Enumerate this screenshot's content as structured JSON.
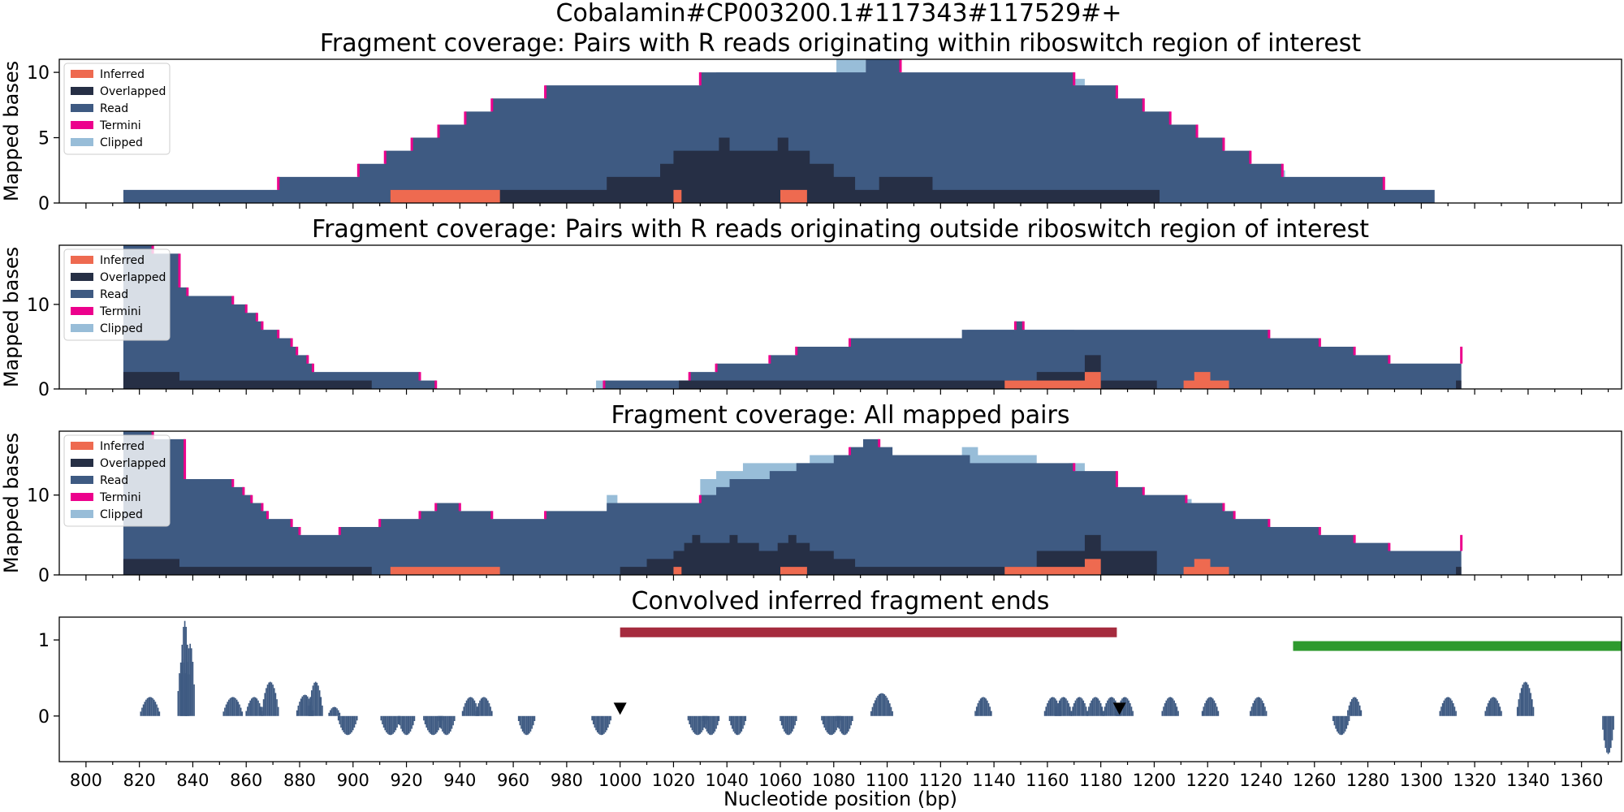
{
  "figure": {
    "suptitle": "Cobalamin#CP003200.1#117343#117529#+",
    "xlabel": "Nucleotide position (bp)"
  },
  "colors": {
    "inferred": "#ee6a50",
    "overlapped": "#262f45",
    "read": "#3e5a82",
    "termini": "#ec008c",
    "clipped": "#98bdd8",
    "riboswitch_bar": "#a52b3e",
    "gene_bar": "#2e9a2e",
    "marker": "#000000"
  },
  "chart_data": [
    {
      "type": "area",
      "title": "Fragment coverage: Pairs with R reads originating within riboswitch region of interest",
      "ylabel": "Mapped bases",
      "xlim": [
        790,
        1375
      ],
      "ylim": [
        0,
        11
      ],
      "yticks": [
        0,
        5,
        10
      ],
      "legend": {
        "placement": "top-left",
        "entries": [
          "Inferred",
          "Overlapped",
          "Read",
          "Termini",
          "Clipped"
        ]
      },
      "read": [
        [
          814,
          1
        ],
        [
          872,
          2
        ],
        [
          902,
          3
        ],
        [
          912,
          4
        ],
        [
          922,
          5
        ],
        [
          932,
          6
        ],
        [
          942,
          7
        ],
        [
          952,
          8
        ],
        [
          972,
          9
        ],
        [
          1030,
          10
        ],
        [
          1092,
          11
        ],
        [
          1105,
          10
        ],
        [
          1170,
          9
        ],
        [
          1186,
          8
        ],
        [
          1196,
          7
        ],
        [
          1206,
          6
        ],
        [
          1216,
          5
        ],
        [
          1226,
          4
        ],
        [
          1236,
          3
        ],
        [
          1248,
          2
        ],
        [
          1286,
          1
        ],
        [
          1305,
          0
        ]
      ],
      "clipped": [
        [
          1036,
          10
        ],
        [
          1081,
          11
        ],
        [
          1092,
          null
        ],
        [
          1170,
          9.5
        ],
        [
          1174,
          null
        ],
        [
          1212,
          5.5
        ],
        [
          1214,
          null
        ],
        [
          1233,
          3.5
        ],
        [
          1236,
          null
        ],
        [
          1247,
          2.5
        ],
        [
          1249,
          null
        ]
      ],
      "overlapped": [
        [
          914,
          1
        ],
        [
          955,
          1
        ],
        [
          995,
          2
        ],
        [
          1015,
          3
        ],
        [
          1020,
          4
        ],
        [
          1037,
          5
        ],
        [
          1041,
          4
        ],
        [
          1059,
          5
        ],
        [
          1063,
          4
        ],
        [
          1071,
          3
        ],
        [
          1080,
          2
        ],
        [
          1088,
          1
        ],
        [
          1097,
          2
        ],
        [
          1117,
          1
        ],
        [
          1202,
          0
        ]
      ],
      "inferred": [
        [
          914,
          1
        ],
        [
          955,
          0
        ],
        [
          1020,
          1
        ],
        [
          1023,
          0
        ],
        [
          1060,
          1
        ],
        [
          1070,
          0
        ]
      ],
      "termini": [
        872,
        902,
        912,
        922,
        932,
        942,
        952,
        972,
        1030,
        1105,
        1170,
        1186,
        1196,
        1206,
        1216,
        1226,
        1236,
        1248,
        1286
      ]
    },
    {
      "type": "area",
      "title": "Fragment coverage: Pairs with R reads originating outside riboswitch region of interest",
      "ylabel": "Mapped bases",
      "xlim": [
        790,
        1375
      ],
      "ylim": [
        0,
        17
      ],
      "yticks": [
        0,
        10
      ],
      "legend": {
        "placement": "top-left",
        "entries": [
          "Inferred",
          "Overlapped",
          "Read",
          "Termini",
          "Clipped"
        ]
      },
      "read": [
        [
          814,
          17
        ],
        [
          825,
          16
        ],
        [
          835,
          12
        ],
        [
          838,
          11
        ],
        [
          855,
          10
        ],
        [
          860,
          9
        ],
        [
          864,
          8
        ],
        [
          866,
          7
        ],
        [
          872,
          6
        ],
        [
          877,
          5
        ],
        [
          879,
          4
        ],
        [
          883,
          3
        ],
        [
          885,
          2
        ],
        [
          925,
          1
        ],
        [
          931,
          0
        ],
        [
          994,
          1
        ],
        [
          1026,
          2
        ],
        [
          1036,
          3
        ],
        [
          1056,
          4
        ],
        [
          1066,
          5
        ],
        [
          1086,
          6
        ],
        [
          1128,
          7
        ],
        [
          1148,
          8
        ],
        [
          1151,
          7
        ],
        [
          1192,
          7
        ],
        [
          1243,
          6
        ],
        [
          1262,
          5
        ],
        [
          1275,
          4
        ],
        [
          1288,
          3
        ],
        [
          1315,
          5
        ]
      ],
      "clipped": [
        [
          991,
          1
        ],
        [
          996,
          null
        ],
        [
          1130,
          7
        ],
        [
          1170,
          null
        ]
      ],
      "overlapped": [
        [
          814,
          2
        ],
        [
          835,
          1
        ],
        [
          907,
          0
        ],
        [
          1000,
          0
        ],
        [
          1022,
          1
        ],
        [
          1062,
          1
        ],
        [
          1156,
          2
        ],
        [
          1174,
          4
        ],
        [
          1180,
          1
        ],
        [
          1201,
          0
        ],
        [
          1313,
          1
        ],
        [
          1315,
          0
        ]
      ],
      "inferred": [
        [
          1144,
          1
        ],
        [
          1174,
          2
        ],
        [
          1180,
          0
        ],
        [
          1211,
          1
        ],
        [
          1215,
          2
        ],
        [
          1221,
          1
        ],
        [
          1228,
          0
        ]
      ],
      "termini": [
        825,
        835,
        838,
        855,
        860,
        864,
        866,
        872,
        877,
        879,
        883,
        885,
        925,
        931,
        994,
        1026,
        1036,
        1056,
        1066,
        1086,
        1148,
        1151,
        1243,
        1262,
        1275,
        1288,
        1315
      ]
    },
    {
      "type": "area",
      "title": "Fragment coverage: All mapped pairs",
      "ylabel": "Mapped bases",
      "xlim": [
        790,
        1375
      ],
      "ylim": [
        0,
        18
      ],
      "yticks": [
        0,
        10
      ],
      "legend": {
        "placement": "top-left",
        "entries": [
          "Inferred",
          "Overlapped",
          "Read",
          "Termini",
          "Clipped"
        ]
      },
      "read": [
        [
          814,
          18
        ],
        [
          825,
          17
        ],
        [
          837,
          12
        ],
        [
          855,
          11
        ],
        [
          859,
          10
        ],
        [
          862,
          9
        ],
        [
          866,
          8
        ],
        [
          868,
          7
        ],
        [
          877,
          6
        ],
        [
          880,
          5
        ],
        [
          895,
          6
        ],
        [
          910,
          7
        ],
        [
          925,
          8
        ],
        [
          931,
          9
        ],
        [
          940,
          8
        ],
        [
          952,
          7
        ],
        [
          972,
          8
        ],
        [
          995,
          9
        ],
        [
          1030,
          10
        ],
        [
          1036,
          11
        ],
        [
          1041,
          12
        ],
        [
          1056,
          13
        ],
        [
          1066,
          14
        ],
        [
          1080,
          15
        ],
        [
          1086,
          16
        ],
        [
          1091,
          17
        ],
        [
          1097,
          16
        ],
        [
          1102,
          15
        ],
        [
          1131,
          14
        ],
        [
          1170,
          13
        ],
        [
          1186,
          11
        ],
        [
          1196,
          10
        ],
        [
          1212,
          9
        ],
        [
          1226,
          8
        ],
        [
          1230,
          7
        ],
        [
          1243,
          6
        ],
        [
          1262,
          5
        ],
        [
          1275,
          4
        ],
        [
          1288,
          3
        ],
        [
          1315,
          5
        ]
      ],
      "clipped": [
        [
          995,
          10
        ],
        [
          999,
          null
        ],
        [
          1030,
          12
        ],
        [
          1036,
          13
        ],
        [
          1046,
          14
        ],
        [
          1071,
          15
        ],
        [
          1082,
          null
        ],
        [
          1128,
          16
        ],
        [
          1134,
          15
        ],
        [
          1156,
          null
        ],
        [
          1168,
          14
        ],
        [
          1174,
          null
        ],
        [
          1212,
          9.5
        ],
        [
          1214,
          null
        ]
      ],
      "overlapped": [
        [
          814,
          2
        ],
        [
          835,
          1
        ],
        [
          907,
          0
        ],
        [
          1000,
          1
        ],
        [
          1010,
          2
        ],
        [
          1020,
          3
        ],
        [
          1024,
          4
        ],
        [
          1027,
          5
        ],
        [
          1030,
          4
        ],
        [
          1041,
          5
        ],
        [
          1044,
          4
        ],
        [
          1052,
          3
        ],
        [
          1059,
          4
        ],
        [
          1063,
          5
        ],
        [
          1066,
          4
        ],
        [
          1071,
          3
        ],
        [
          1080,
          2
        ],
        [
          1088,
          1
        ],
        [
          1140,
          1
        ],
        [
          1156,
          3
        ],
        [
          1174,
          5
        ],
        [
          1180,
          3
        ],
        [
          1201,
          0
        ],
        [
          1313,
          1
        ],
        [
          1315,
          0
        ]
      ],
      "inferred": [
        [
          914,
          1
        ],
        [
          955,
          0
        ],
        [
          1020,
          1
        ],
        [
          1023,
          0
        ],
        [
          1060,
          1
        ],
        [
          1070,
          0
        ],
        [
          1144,
          1
        ],
        [
          1174,
          2
        ],
        [
          1180,
          0
        ],
        [
          1211,
          1
        ],
        [
          1215,
          2
        ],
        [
          1221,
          1
        ],
        [
          1228,
          0
        ]
      ],
      "termini": [
        825,
        837,
        855,
        859,
        862,
        866,
        868,
        877,
        880,
        895,
        910,
        925,
        931,
        940,
        952,
        972,
        1030,
        1086,
        1097,
        1170,
        1186,
        1196,
        1212,
        1226,
        1230,
        1243,
        1262,
        1275,
        1288,
        1315
      ]
    },
    {
      "type": "bar",
      "title": "Convolved inferred fragment ends",
      "ylabel": "",
      "xlabel": "Nucleotide position (bp)",
      "xlim": [
        790,
        1375
      ],
      "ylim": [
        -0.6,
        1.3
      ],
      "yticks": [
        0,
        1
      ],
      "xticks": [
        800,
        820,
        840,
        860,
        880,
        900,
        920,
        940,
        960,
        980,
        1000,
        1020,
        1040,
        1060,
        1080,
        1100,
        1120,
        1140,
        1160,
        1180,
        1200,
        1220,
        1240,
        1260,
        1280,
        1300,
        1320,
        1340,
        1360
      ],
      "peaks": [
        {
          "x": 824,
          "h": 0.25,
          "w": 7
        },
        {
          "x": 836,
          "h": 0.75,
          "w": 3
        },
        {
          "x": 837,
          "h": 1.25,
          "w": 3
        },
        {
          "x": 839,
          "h": 0.95,
          "w": 3
        },
        {
          "x": 855,
          "h": 0.25,
          "w": 7
        },
        {
          "x": 863,
          "h": 0.25,
          "w": 6
        },
        {
          "x": 869,
          "h": 0.45,
          "w": 6
        },
        {
          "x": 882,
          "h": 0.28,
          "w": 6
        },
        {
          "x": 886,
          "h": 0.45,
          "w": 5
        },
        {
          "x": 893,
          "h": 0.12,
          "w": 4
        },
        {
          "x": 898,
          "h": -0.25,
          "w": 7
        },
        {
          "x": 914,
          "h": -0.25,
          "w": 7
        },
        {
          "x": 920,
          "h": -0.25,
          "w": 6
        },
        {
          "x": 930,
          "h": -0.25,
          "w": 7
        },
        {
          "x": 935,
          "h": -0.25,
          "w": 6
        },
        {
          "x": 944,
          "h": 0.25,
          "w": 6
        },
        {
          "x": 949,
          "h": 0.25,
          "w": 6
        },
        {
          "x": 965,
          "h": -0.25,
          "w": 6
        },
        {
          "x": 993,
          "h": -0.25,
          "w": 7
        },
        {
          "x": 1029,
          "h": -0.25,
          "w": 7
        },
        {
          "x": 1034,
          "h": -0.25,
          "w": 6
        },
        {
          "x": 1044,
          "h": -0.25,
          "w": 6
        },
        {
          "x": 1063,
          "h": -0.25,
          "w": 6
        },
        {
          "x": 1079,
          "h": -0.25,
          "w": 7
        },
        {
          "x": 1084,
          "h": -0.25,
          "w": 6
        },
        {
          "x": 1098,
          "h": 0.3,
          "w": 8
        },
        {
          "x": 1136,
          "h": 0.25,
          "w": 6
        },
        {
          "x": 1162,
          "h": 0.25,
          "w": 6
        },
        {
          "x": 1166,
          "h": 0.25,
          "w": 6
        },
        {
          "x": 1172,
          "h": 0.25,
          "w": 6
        },
        {
          "x": 1178,
          "h": 0.25,
          "w": 6
        },
        {
          "x": 1184,
          "h": 0.25,
          "w": 6
        },
        {
          "x": 1189,
          "h": 0.25,
          "w": 6
        },
        {
          "x": 1206,
          "h": 0.25,
          "w": 6
        },
        {
          "x": 1221,
          "h": 0.25,
          "w": 6
        },
        {
          "x": 1239,
          "h": 0.25,
          "w": 6
        },
        {
          "x": 1270,
          "h": -0.25,
          "w": 6
        },
        {
          "x": 1275,
          "h": 0.25,
          "w": 5
        },
        {
          "x": 1310,
          "h": 0.25,
          "w": 6
        },
        {
          "x": 1327,
          "h": 0.25,
          "w": 6
        },
        {
          "x": 1339,
          "h": 0.45,
          "w": 6
        },
        {
          "x": 1370,
          "h": -0.5,
          "w": 4
        }
      ],
      "riboswitch_bar": {
        "x0": 1000,
        "x1": 1186,
        "y": 1.1
      },
      "gene_bar": {
        "x0": 1252,
        "x1": 1375,
        "y": 0.92
      },
      "markers": [
        {
          "x": 1000,
          "y": 0.1
        },
        {
          "x": 1187,
          "y": 0.1
        }
      ]
    }
  ]
}
